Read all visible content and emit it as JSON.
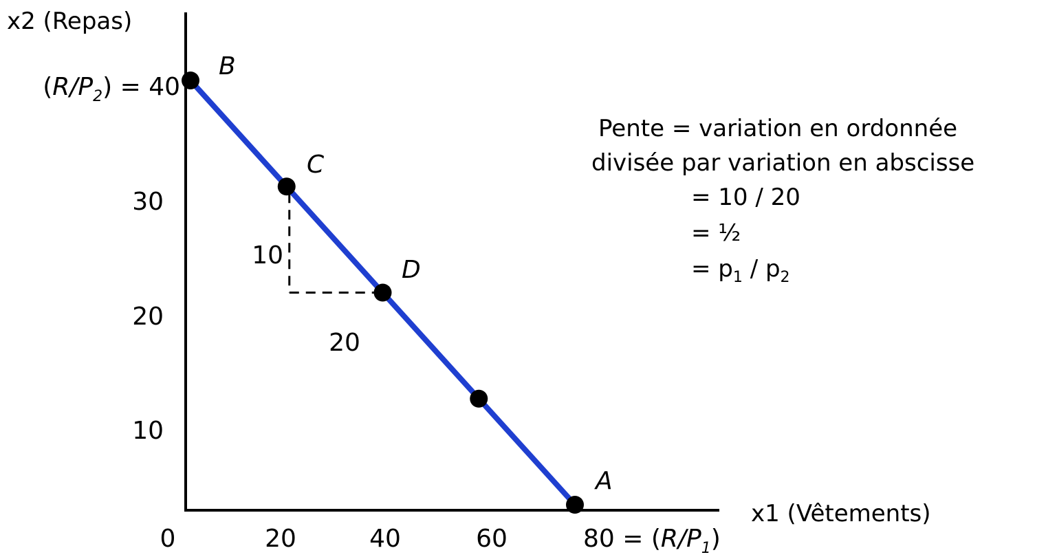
{
  "chart_data": {
    "type": "line",
    "title": "",
    "xlabel": "x1 (Vêtements)",
    "ylabel": "x2 (Repas)",
    "xlim": [
      0,
      100
    ],
    "ylim": [
      0,
      45
    ],
    "x_ticks": [
      "0",
      "20",
      "40",
      "60"
    ],
    "x_tick_values": [
      0,
      20,
      40,
      60
    ],
    "x_end_tick": {
      "prefix": "80 = (",
      "italic": "R/P",
      "sub": "1",
      "suffix": ")",
      "value": 80
    },
    "y_ticks": [
      "10",
      "20",
      "30"
    ],
    "y_tick_values": [
      10,
      20,
      30
    ],
    "y_top_tick": {
      "prefix": "(",
      "italic": "R/P",
      "sub": "2",
      "suffix": ") = 40",
      "value": 40
    },
    "series": [
      {
        "color": "#1f3fd0",
        "points": [
          {
            "x": 0,
            "y": 40,
            "label": "B"
          },
          {
            "x": 20,
            "y": 30,
            "label": "C"
          },
          {
            "x": 40,
            "y": 20,
            "label": "D"
          },
          {
            "x": 60,
            "y": 10,
            "label": ""
          },
          {
            "x": 80,
            "y": 0,
            "label": "A"
          }
        ]
      }
    ],
    "slope_triangle": {
      "from": {
        "x": 20,
        "y": 30
      },
      "corner": {
        "x": 20,
        "y": 20
      },
      "to": {
        "x": 40,
        "y": 20
      },
      "vertical_label": "10",
      "horizontal_label": "20"
    },
    "annotation": {
      "lines": [
        "Pente = variation en ordonnée",
        "divisée par variation en abscisse",
        "= 10 / 20",
        "=  ½"
      ],
      "last_line": {
        "prefix": "= p",
        "sub1": "1",
        "mid": " / p",
        "sub2": "2"
      }
    },
    "grid": false,
    "legend": "none"
  }
}
